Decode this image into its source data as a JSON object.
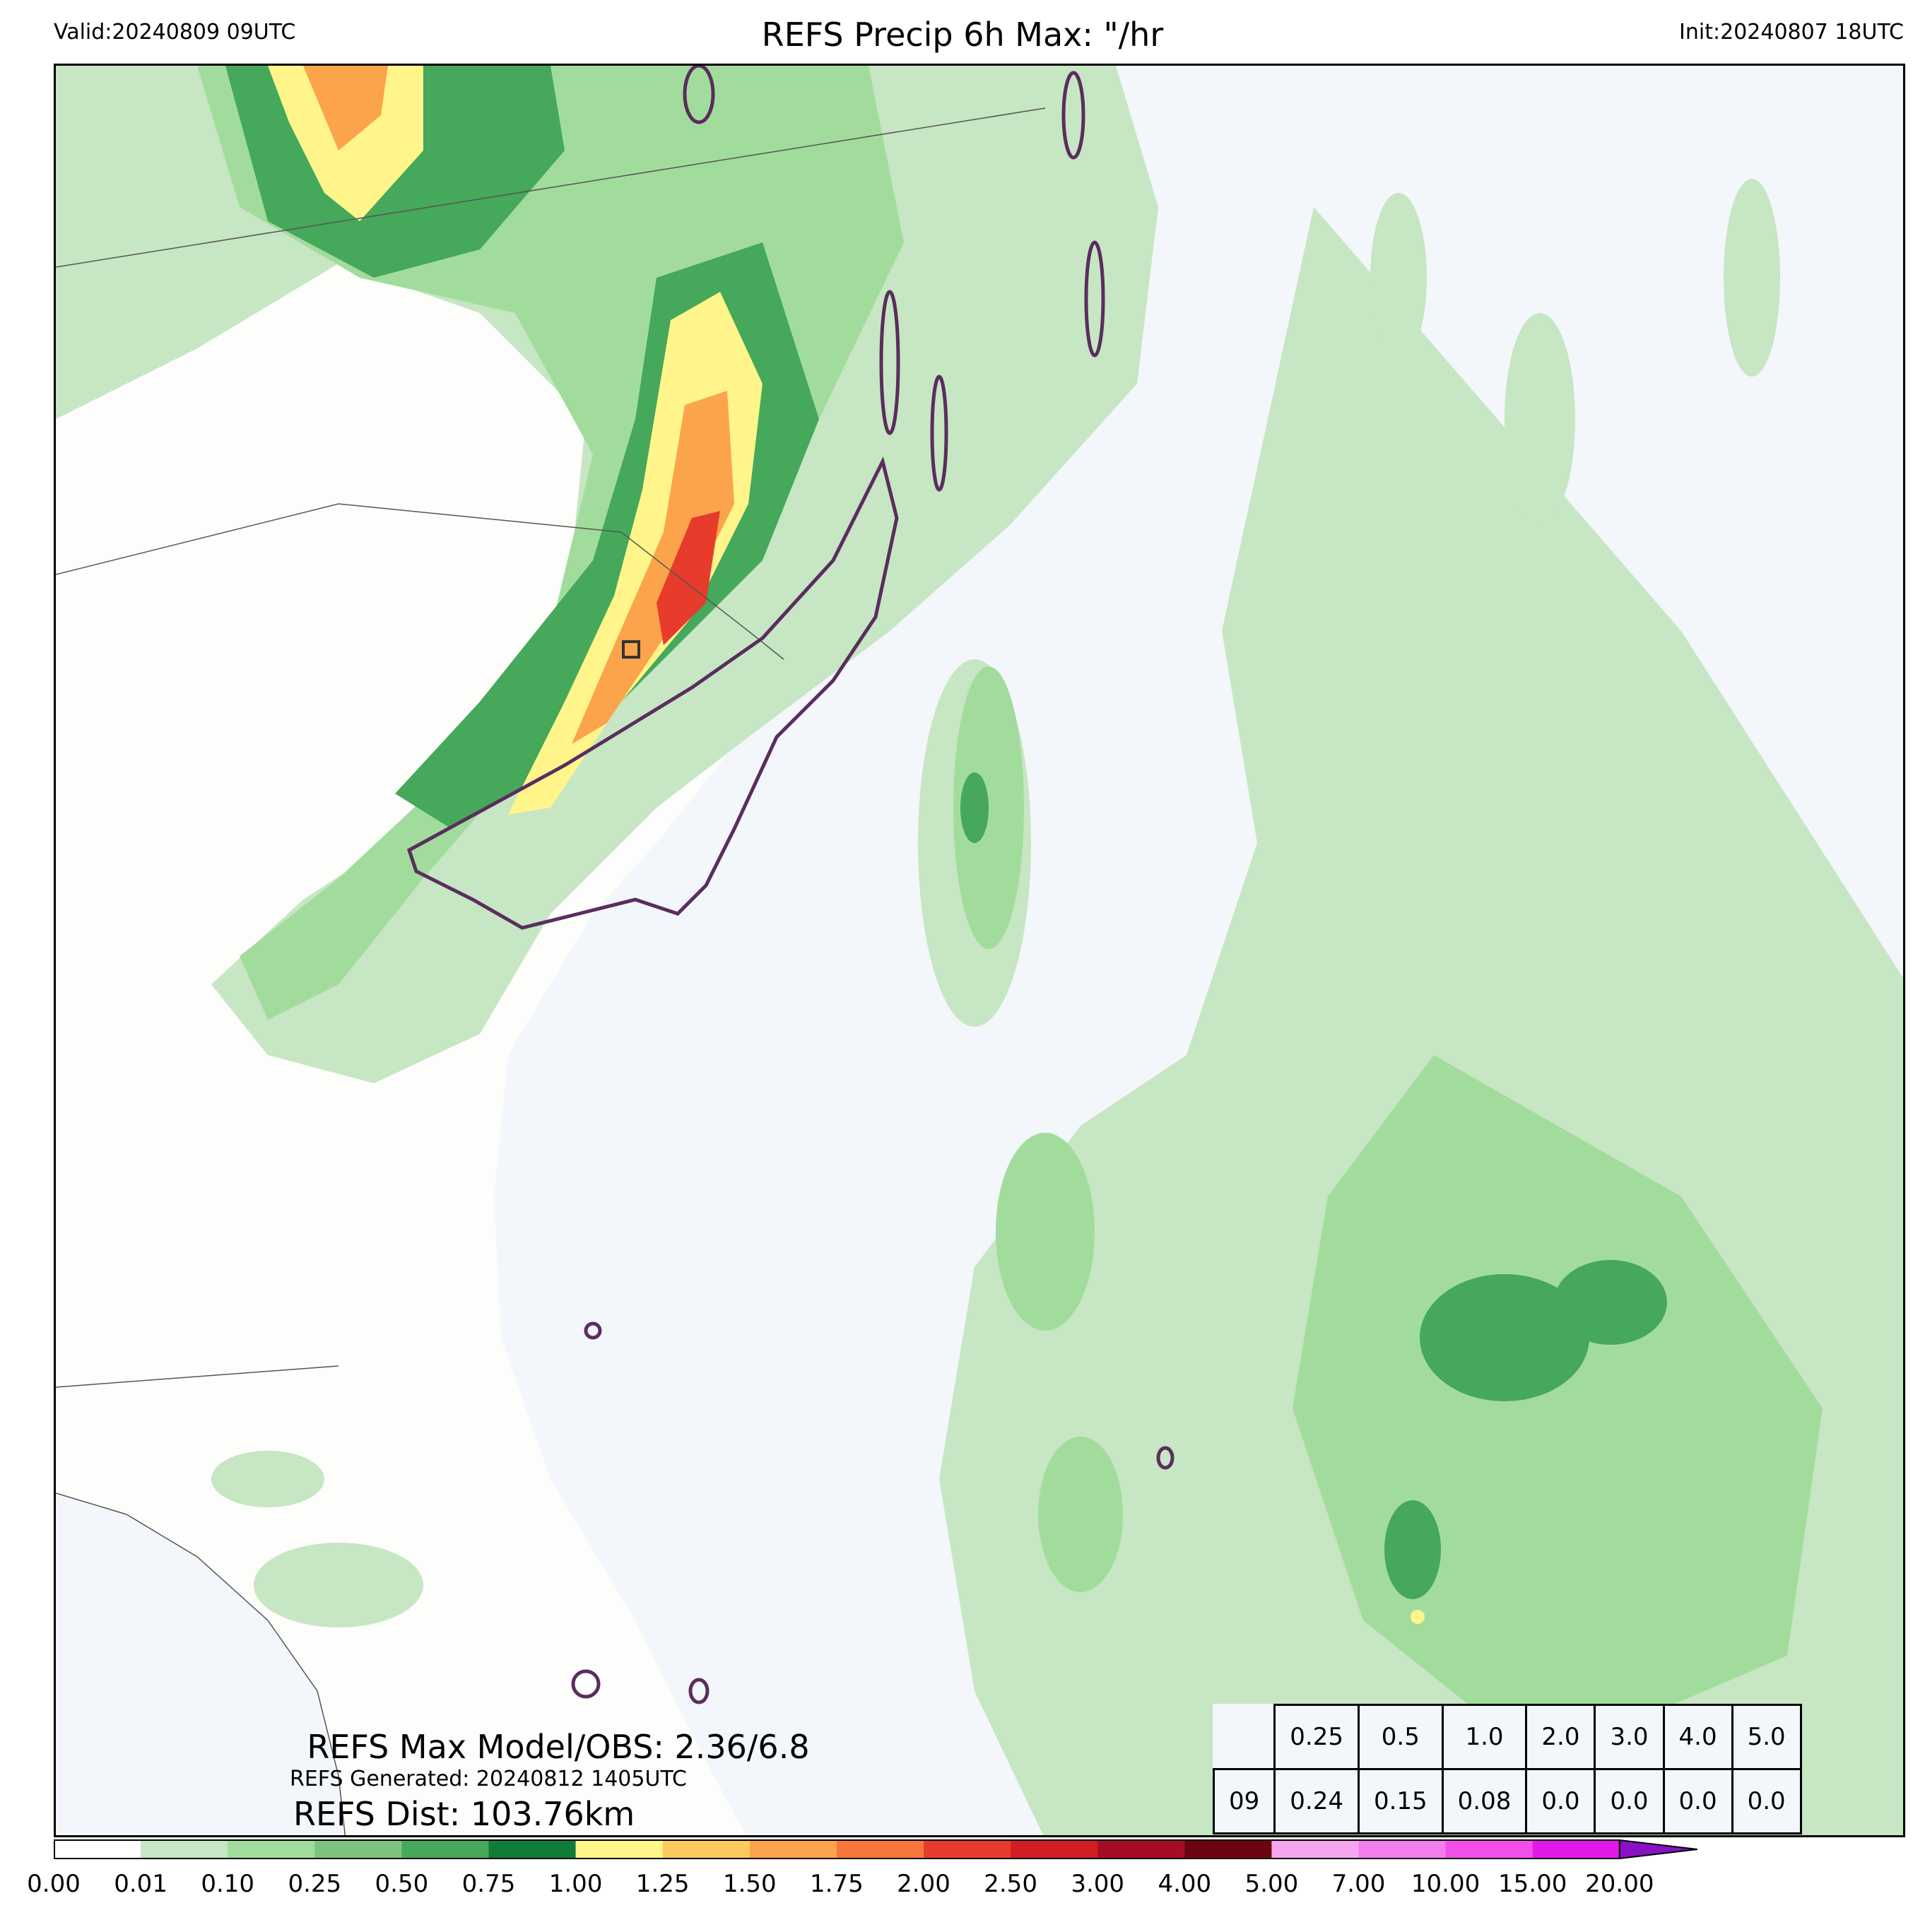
{
  "header": {
    "valid": "Valid:20240809 09UTC",
    "title": "REFS Precip 6h Max: \"/hr",
    "init": "Init:20240807 18UTC"
  },
  "stats": {
    "max_model_obs": "REFS Max Model/OBS: 2.36/6.8",
    "generated": "REFS Generated: 20240812 1405UTC",
    "dist": "REFS Dist: 103.76km"
  },
  "threshold_table": {
    "thresholds": [
      "0.25",
      "0.5",
      "1.0",
      "2.0",
      "3.0",
      "4.0",
      "5.0"
    ],
    "row_label": "09",
    "values": [
      "0.24",
      "0.15",
      "0.08",
      "0.0",
      "0.0",
      "0.0",
      "0.0"
    ]
  },
  "colorbar": {
    "ticks": [
      "0.00",
      "0.01",
      "0.10",
      "0.25",
      "0.50",
      "0.75",
      "1.00",
      "1.25",
      "1.50",
      "1.75",
      "2.00",
      "2.50",
      "3.00",
      "4.00",
      "5.00",
      "7.00",
      "10.00",
      "15.00",
      "20.00"
    ],
    "colors": [
      "#ffffff",
      "#c7e6c3",
      "#a2dc9c",
      "#7cc47d",
      "#45a85a",
      "#0f7c38",
      "#fff58a",
      "#fcc95c",
      "#fba44c",
      "#f8763c",
      "#e73b2c",
      "#d11e24",
      "#a50d27",
      "#6d0410",
      "#f5a6ef",
      "#f27ded",
      "#f24ee9",
      "#e11ae8",
      "#9b16c8"
    ],
    "extend_color": "#8a10c4"
  },
  "map_colors": {
    "land": "#fdfdfb",
    "ocean": "#f3f6fb",
    "contour": "#5a2d5e",
    "boundary": "#555555"
  }
}
